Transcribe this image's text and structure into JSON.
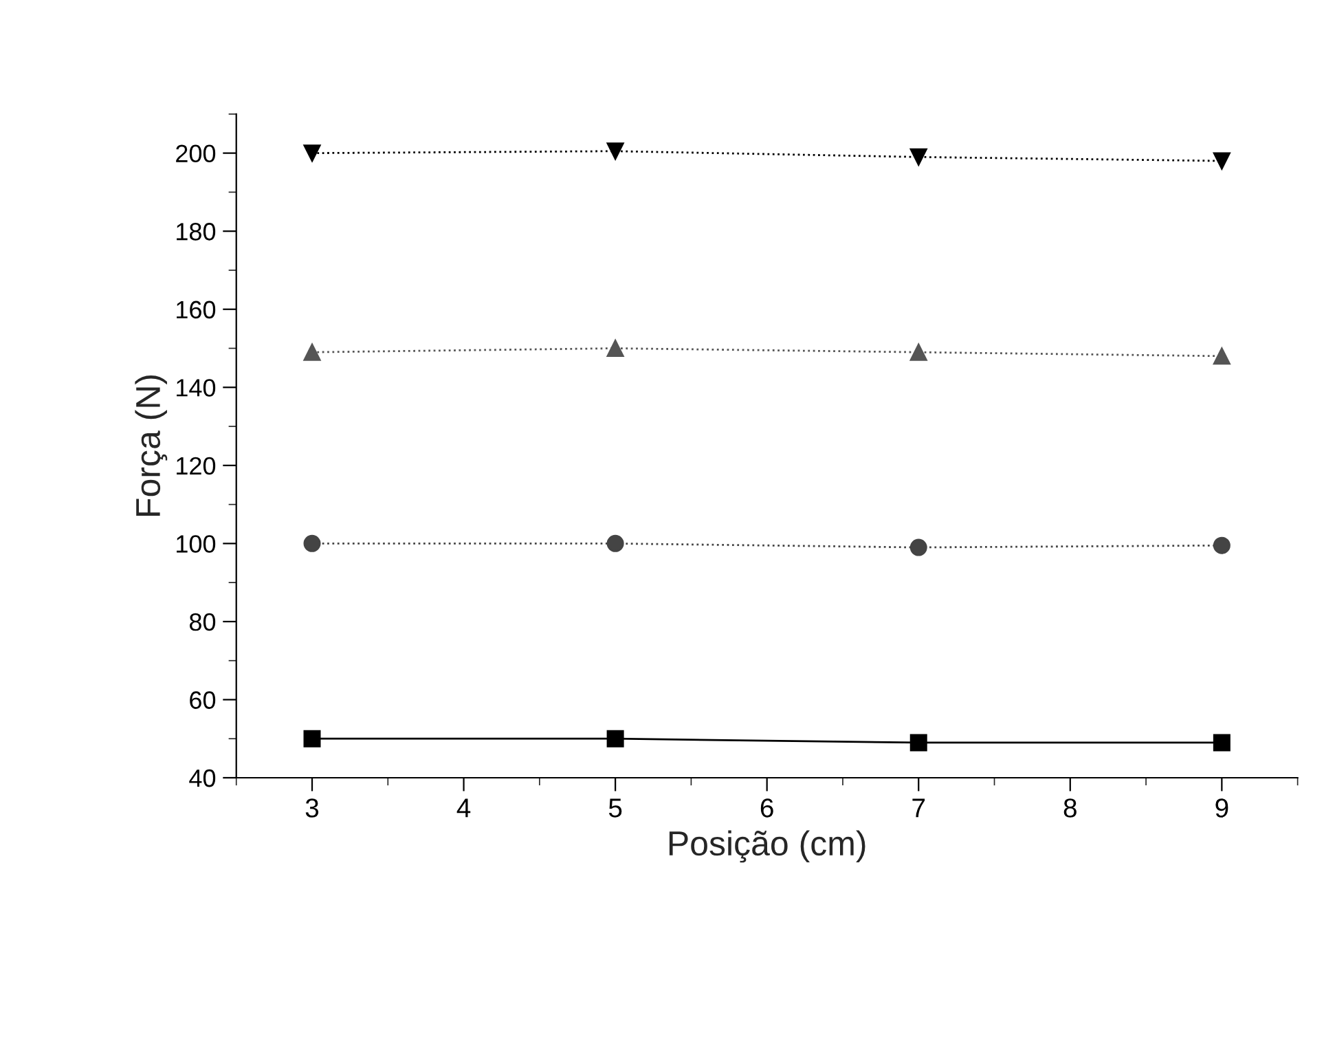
{
  "chart_data": {
    "type": "line",
    "xlabel": "Posição (cm)",
    "ylabel": "Força (N)",
    "x": [
      3,
      5,
      7,
      9
    ],
    "series": [
      {
        "color": "#000000",
        "values": [
          50,
          50,
          49,
          49
        ],
        "marker": "square",
        "line_style": "solid"
      },
      {
        "color": "#444444",
        "values": [
          100,
          100,
          99,
          99.5
        ],
        "marker": "circle",
        "line_style": "dotted"
      },
      {
        "color": "#555555",
        "values": [
          149,
          150,
          149,
          148
        ],
        "marker": "triangle",
        "line_style": "dotted"
      },
      {
        "color": "#000000",
        "values": [
          200,
          200.5,
          199,
          198
        ],
        "marker": "triangle_down",
        "line_style": "dotted"
      }
    ],
    "xlim": [
      2.5,
      9.5
    ],
    "xticks": [
      3,
      4,
      5,
      6,
      7,
      8,
      9
    ],
    "ylim": [
      40,
      210
    ],
    "yticks": [
      40,
      60,
      80,
      100,
      120,
      140,
      160,
      180,
      200
    ],
    "grid": false,
    "legend": false
  }
}
